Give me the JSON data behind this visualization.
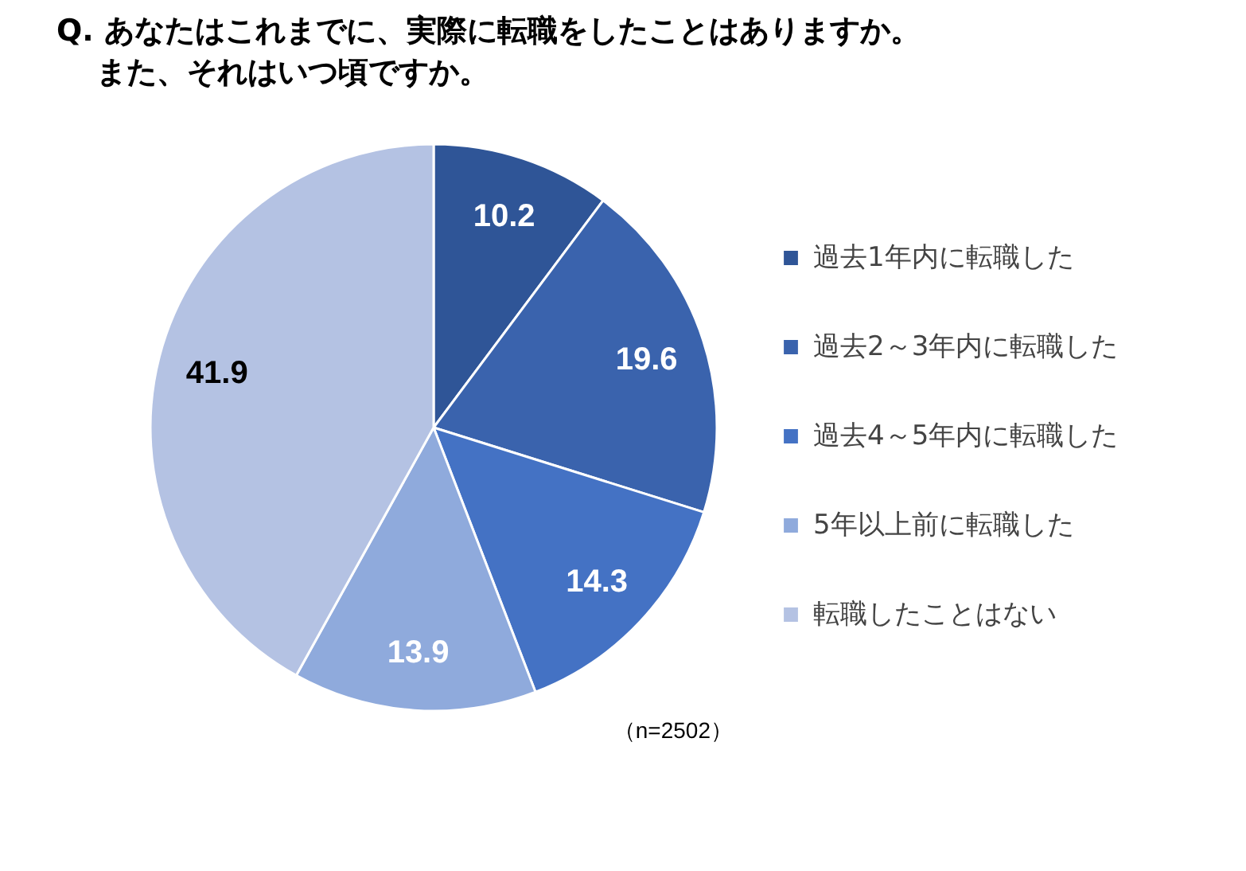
{
  "chart_data": {
    "type": "pie",
    "title": "Q. あなたはこれまでに、実際に転職をしたことはありますか。",
    "subtitle": "また、それはいつ頃ですか。",
    "categories": [
      "過去1年内に転職した",
      "過去2～3年内に転職した",
      "過去4～5年内に転職した",
      "5年以上前に転職した",
      "転職したことはない"
    ],
    "values": [
      10.2,
      19.6,
      14.3,
      13.9,
      41.9
    ],
    "colors": [
      "#2f5597",
      "#3a63ad",
      "#4472c4",
      "#8faadc",
      "#b4c2e3"
    ],
    "data_labels": true,
    "legend": "right",
    "annotations": [
      "（n=2502）"
    ]
  }
}
